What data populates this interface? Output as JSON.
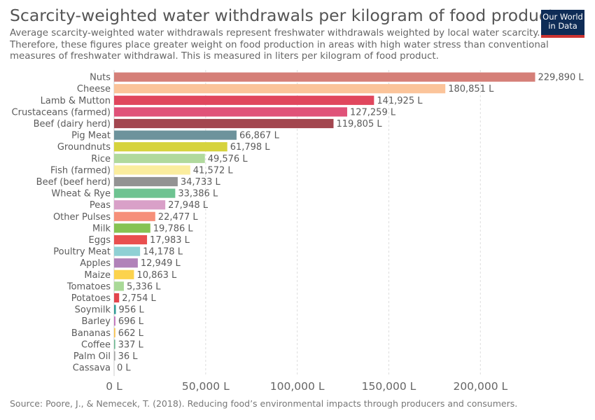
{
  "title": "Scarcity-weighted water withdrawals per kilogram of food product",
  "subtitle": "Average scarcity-weighted water withdrawals represent freshwater withdrawals weighted by local water scarcity. Therefore, these figures place greater weight on food production in areas with high water stress than conventional measures of freshwater withdrawal. This is measured in liters per kilogram of food product.",
  "logo": {
    "line1": "Our World",
    "line2": "in Data"
  },
  "source": "Source: Poore, J., & Nemecek, T. (2018). Reducing food’s environmental impacts through producers and consumers.",
  "chart_data": {
    "type": "bar",
    "orientation": "horizontal",
    "categories": [
      "Nuts",
      "Cheese",
      "Lamb & Mutton",
      "Crustaceans (farmed)",
      "Beef (dairy herd)",
      "Pig Meat",
      "Groundnuts",
      "Rice",
      "Fish (farmed)",
      "Beef (beef herd)",
      "Wheat & Rye",
      "Peas",
      "Other Pulses",
      "Milk",
      "Eggs",
      "Poultry Meat",
      "Apples",
      "Maize",
      "Tomatoes",
      "Potatoes",
      "Soymilk",
      "Barley",
      "Bananas",
      "Coffee",
      "Palm Oil",
      "Cassava"
    ],
    "values": [
      229890,
      180851,
      141925,
      127259,
      119805,
      66867,
      61798,
      49576,
      41572,
      34733,
      33386,
      27948,
      22477,
      19786,
      17983,
      14178,
      12949,
      10863,
      5336,
      2754,
      956,
      696,
      662,
      337,
      36,
      0
    ],
    "value_labels": [
      "229,890 L",
      "180,851 L",
      "141,925 L",
      "127,259 L",
      "119,805 L",
      "66,867 L",
      "61,798 L",
      "49,576 L",
      "41,572 L",
      "34,733 L",
      "33,386 L",
      "27,948 L",
      "22,477 L",
      "19,786 L",
      "17,983 L",
      "14,178 L",
      "12,949 L",
      "10,863 L",
      "5,336 L",
      "2,754 L",
      "956 L",
      "696 L",
      "662 L",
      "337 L",
      "36 L",
      "0 L"
    ],
    "colors": [
      "#d57f78",
      "#fbc49a",
      "#e0465d",
      "#e05279",
      "#a3464f",
      "#6d939c",
      "#d6d33d",
      "#b0d99d",
      "#fbed9e",
      "#939393",
      "#6ec391",
      "#d9a0c8",
      "#f6907a",
      "#86c352",
      "#e94f4f",
      "#8fd0d4",
      "#b182b9",
      "#fcd34d",
      "#a9d998",
      "#e3454d",
      "#2e9a95",
      "#c071b9",
      "#f8c24b",
      "#6cb78f",
      "#a3a3a3",
      "#bbbbbb"
    ],
    "x_ticks": [
      0,
      50000,
      100000,
      150000,
      200000
    ],
    "x_tick_labels": [
      "0 L",
      "50,000 L",
      "100,000 L",
      "150,000 L",
      "200,000 L"
    ],
    "xlim": [
      0,
      229890
    ],
    "xlabel": "",
    "ylabel": "",
    "grid": "vertical dashed",
    "legend": "none"
  }
}
